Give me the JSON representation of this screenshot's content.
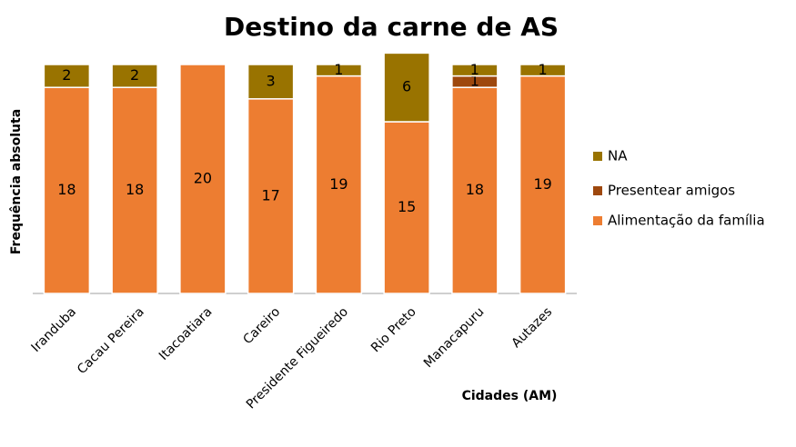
{
  "chart_data": {
    "type": "stacked_bar",
    "title": "Destino da carne de AS",
    "y_label": "Frequência absoluta",
    "x_label": "Cidades (AM)",
    "categories": [
      "Iranduba",
      "Cacau Pereira",
      "Itacoatiara",
      "Careiro",
      "Presidente Figueiredo",
      "Rio Preto",
      "Manacapuru",
      "Autazes"
    ],
    "series": [
      {
        "name": "Alimentação da família",
        "color": "#ed7d31",
        "values": [
          18,
          18,
          20,
          17,
          19,
          15,
          18,
          19
        ]
      },
      {
        "name": "Presentear amigos",
        "color": "#9e480e",
        "values": [
          null,
          null,
          null,
          null,
          null,
          null,
          1,
          null
        ]
      },
      {
        "name": "NA",
        "color": "#997300",
        "values": [
          2,
          2,
          null,
          3,
          1,
          6,
          1,
          1
        ]
      }
    ],
    "ylim": [
      0,
      20
    ],
    "legend": "right"
  }
}
